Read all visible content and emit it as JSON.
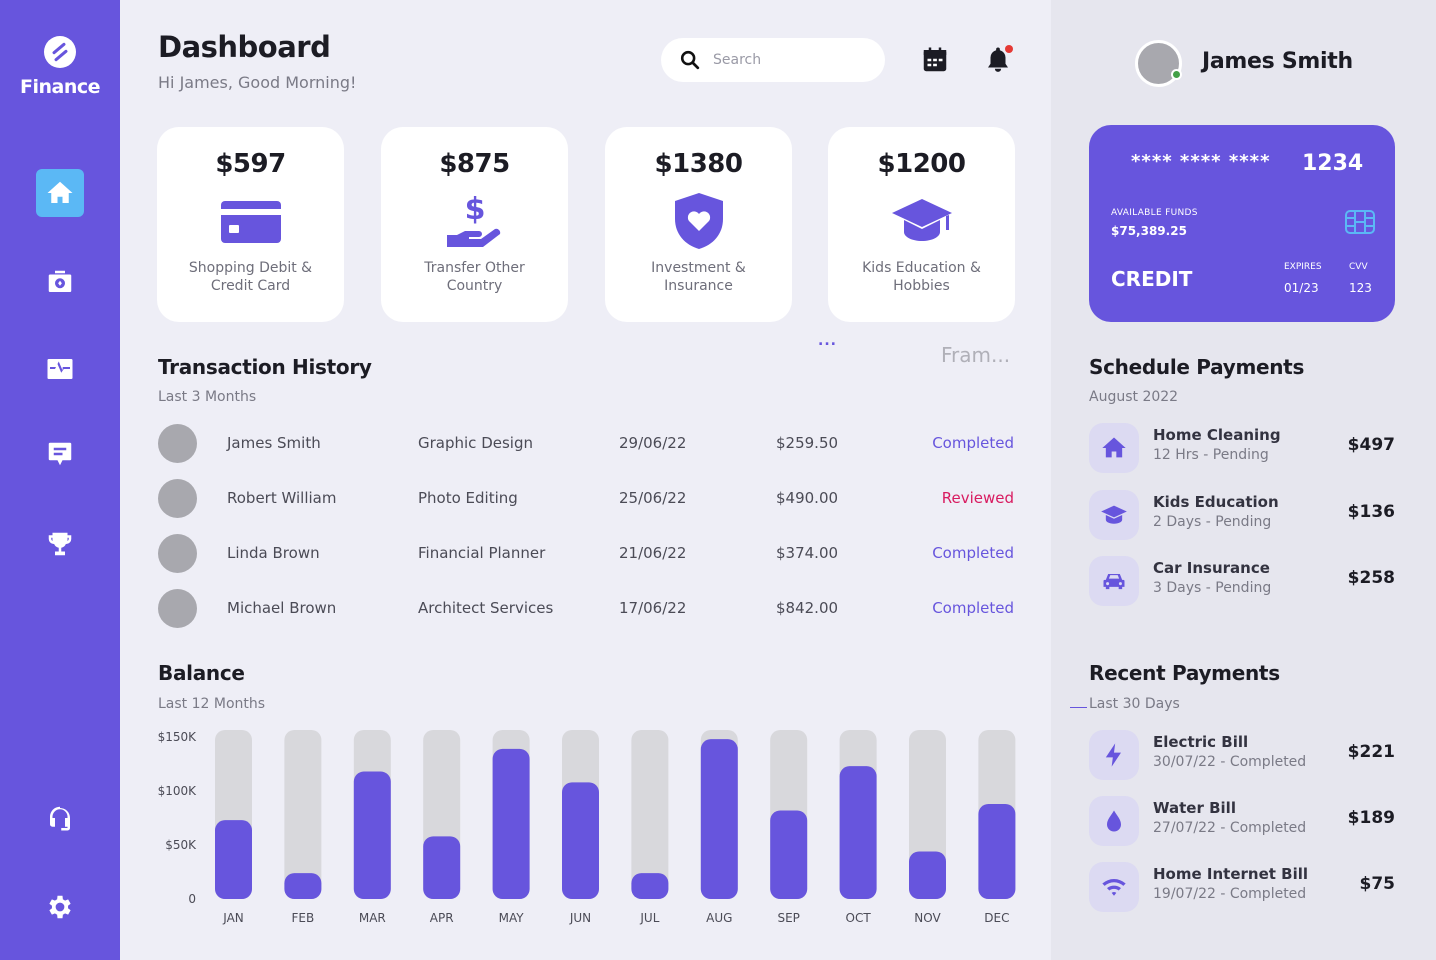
{
  "brand": {
    "name": "Finance"
  },
  "nav": [
    {
      "id": "home",
      "icon": "home-icon"
    },
    {
      "id": "wallet",
      "icon": "wallet-icon"
    },
    {
      "id": "activity",
      "icon": "activity-icon"
    },
    {
      "id": "messages",
      "icon": "message-icon"
    },
    {
      "id": "rewards",
      "icon": "trophy-icon"
    },
    {
      "id": "support",
      "icon": "headphones-icon"
    },
    {
      "id": "settings",
      "icon": "gear-icon"
    }
  ],
  "header": {
    "title": "Dashboard",
    "greeting": "Hi James, Good Morning!",
    "search_placeholder": "Search"
  },
  "stats": [
    {
      "amount": "$597",
      "label": "Shopping Debit & Credit Card",
      "icon": "credit-card-icon"
    },
    {
      "amount": "$875",
      "label": "Transfer Other Country",
      "icon": "transfer-money-icon"
    },
    {
      "amount": "$1380",
      "label": "Investment & Insurance",
      "icon": "shield-heart-icon"
    },
    {
      "amount": "$1200",
      "label": "Kids Education & Hobbies",
      "icon": "graduation-cap-icon"
    }
  ],
  "misc": {
    "dots": "...",
    "frame_label": "Fram..."
  },
  "transactions": {
    "title": "Transaction History",
    "subtitle": "Last 3 Months",
    "rows": [
      {
        "name": "James Smith",
        "category": "Graphic Design",
        "date": "29/06/22",
        "amount": "$259.50",
        "status": "Completed"
      },
      {
        "name": "Robert William",
        "category": "Photo Editing",
        "date": "25/06/22",
        "amount": "$490.00",
        "status": "Reviewed"
      },
      {
        "name": "Linda Brown",
        "category": "Financial Planner",
        "date": "21/06/22",
        "amount": "$374.00",
        "status": "Completed"
      },
      {
        "name": "Michael Brown",
        "category": "Architect Services",
        "date": "17/06/22",
        "amount": "$842.00",
        "status": "Completed"
      }
    ]
  },
  "balance": {
    "title": "Balance",
    "subtitle": "Last 12 Months"
  },
  "chart_data": {
    "type": "bar",
    "categories": [
      "JAN",
      "FEB",
      "MAR",
      "APR",
      "MAY",
      "JUN",
      "JUL",
      "AUG",
      "SEP",
      "OCT",
      "NOV",
      "DEC"
    ],
    "values": [
      73,
      24,
      118,
      58,
      139,
      108,
      24,
      148,
      82,
      123,
      44,
      88
    ],
    "ylim": [
      0,
      150
    ],
    "yticks": [
      0,
      50,
      100,
      150
    ],
    "ytick_labels": [
      "0",
      "$50K",
      "$100K",
      "$150K"
    ],
    "grid": false,
    "colors": {
      "bar": "#6755dd",
      "track": "#d8d8dc"
    }
  },
  "user": {
    "name": "James Smith"
  },
  "card": {
    "masked": "**** **** ****",
    "last4": "1234",
    "funds_label": "AVAILABLE FUNDS",
    "funds": "$75,389.25",
    "type": "CREDIT",
    "expires_label": "EXPIRES",
    "expires": "01/23",
    "cvv_label": "CVV",
    "cvv": "123"
  },
  "schedule": {
    "title": "Schedule Payments",
    "subtitle": "August 2022",
    "items": [
      {
        "title": "Home Cleaning",
        "sub": "12 Hrs - Pending",
        "amount": "$497",
        "icon": "home-icon"
      },
      {
        "title": "Kids Education",
        "sub": "2 Days - Pending",
        "amount": "$136",
        "icon": "graduation-cap-icon"
      },
      {
        "title": "Car Insurance",
        "sub": "3 Days - Pending",
        "amount": "$258",
        "icon": "car-icon"
      }
    ]
  },
  "recent": {
    "title": "Recent Payments",
    "subtitle": "Last 30 Days",
    "items": [
      {
        "title": "Electric Bill",
        "sub": "30/07/22 - Completed",
        "amount": "$221",
        "icon": "lightning-icon"
      },
      {
        "title": "Water Bill",
        "sub": "27/07/22 - Completed",
        "amount": "$189",
        "icon": "water-drop-icon"
      },
      {
        "title": "Home Internet Bill",
        "sub": "19/07/22 - Completed",
        "amount": "$75",
        "icon": "wifi-icon"
      }
    ]
  },
  "colors": {
    "accent": "#6755dd",
    "active_nav": "#5bb8f5",
    "reviewed": "#d81b60",
    "background": "#eeeef6"
  }
}
